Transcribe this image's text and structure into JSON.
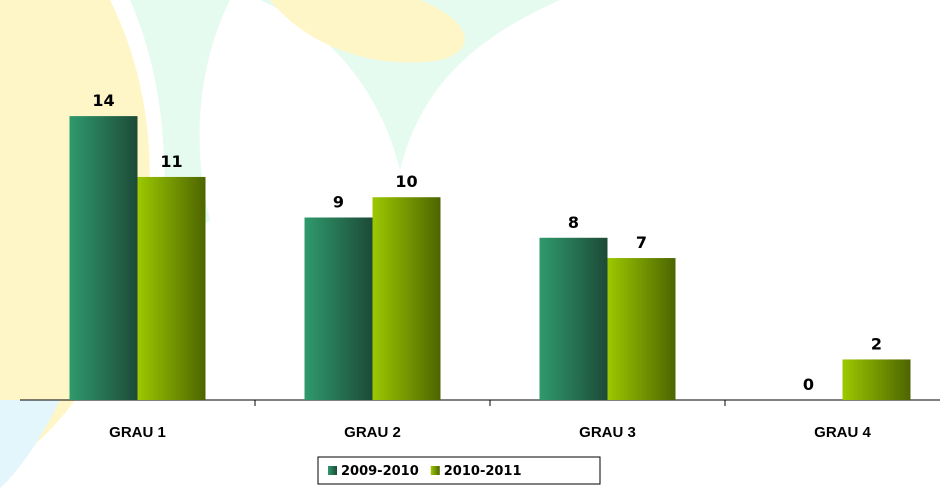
{
  "chart_data": {
    "type": "bar",
    "categories": [
      "GRAU 1",
      "GRAU 2",
      "GRAU 3",
      "GRAU 4"
    ],
    "series": [
      {
        "name": "2009-2010",
        "color": "#2f9a6c",
        "values": [
          14,
          9,
          8,
          0
        ]
      },
      {
        "name": "2010-2011",
        "color": "#9cc800",
        "values": [
          11,
          10,
          7,
          2
        ]
      }
    ],
    "ylim": [
      0,
      18
    ],
    "legend": "bottom"
  }
}
